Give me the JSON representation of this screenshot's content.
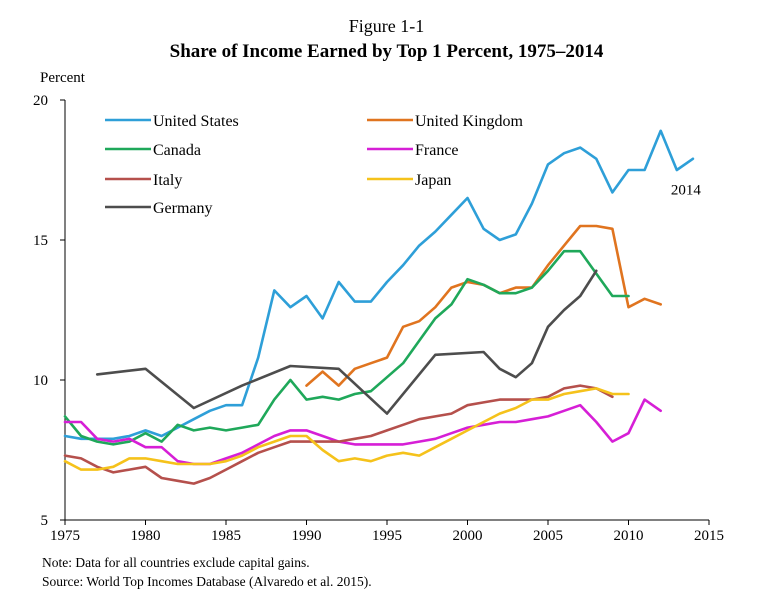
{
  "figure_label": "Figure 1-1",
  "notes": [
    "Note: Data for all countries exclude capital gains.",
    "Source: World Top Incomes Database (Alvaredo et al. 2015)."
  ],
  "chart_data": {
    "type": "line",
    "title": "Share of Income Earned by Top 1 Percent, 1975–2014",
    "ylabel": "Percent",
    "xlabel": "",
    "xlim": [
      1975,
      2015
    ],
    "ylim": [
      5,
      20
    ],
    "x_ticks": [
      1975,
      1980,
      1985,
      1990,
      1995,
      2000,
      2005,
      2010,
      2015
    ],
    "y_ticks": [
      5,
      10,
      15,
      20
    ],
    "grid": false,
    "legend_position": "top-left",
    "annotations": [
      {
        "text": "2014",
        "x": 2014,
        "y": 16.8
      }
    ],
    "series": [
      {
        "name": "United States",
        "color": "#2E9FD8",
        "x": [
          1975,
          1976,
          1977,
          1978,
          1979,
          1980,
          1981,
          1982,
          1983,
          1984,
          1985,
          1986,
          1987,
          1988,
          1989,
          1990,
          1991,
          1992,
          1993,
          1994,
          1995,
          1996,
          1997,
          1998,
          1999,
          2000,
          2001,
          2002,
          2003,
          2004,
          2005,
          2006,
          2007,
          2008,
          2009,
          2010,
          2011,
          2012,
          2013,
          2014
        ],
        "y": [
          8.0,
          7.9,
          7.9,
          7.9,
          8.0,
          8.2,
          8.0,
          8.3,
          8.6,
          8.9,
          9.1,
          9.1,
          10.8,
          13.2,
          12.6,
          13.0,
          12.2,
          13.5,
          12.8,
          12.8,
          13.5,
          14.1,
          14.8,
          15.3,
          15.9,
          16.5,
          15.4,
          15.0,
          15.2,
          16.3,
          17.7,
          18.1,
          18.3,
          17.9,
          16.7,
          17.5,
          17.5,
          18.9,
          17.5,
          17.9
        ]
      },
      {
        "name": "United Kingdom",
        "color": "#E0741F",
        "x": [
          1990,
          1991,
          1992,
          1993,
          1994,
          1995,
          1996,
          1997,
          1998,
          1999,
          2000,
          2001,
          2002,
          2003,
          2004,
          2005,
          2006,
          2007,
          2008,
          2009,
          2010,
          2011,
          2012
        ],
        "y": [
          9.8,
          10.3,
          9.8,
          10.4,
          10.6,
          10.8,
          11.9,
          12.1,
          12.6,
          13.3,
          13.5,
          13.4,
          13.1,
          13.3,
          13.3,
          14.1,
          14.8,
          15.5,
          15.5,
          15.4,
          12.6,
          12.9,
          12.7
        ]
      },
      {
        "name": "Canada",
        "color": "#1FA85A",
        "x": [
          1975,
          1976,
          1977,
          1978,
          1979,
          1980,
          1981,
          1982,
          1983,
          1984,
          1985,
          1986,
          1987,
          1988,
          1989,
          1990,
          1991,
          1992,
          1993,
          1994,
          1995,
          1996,
          1997,
          1998,
          1999,
          2000,
          2001,
          2002,
          2003,
          2004,
          2005,
          2006,
          2007,
          2008,
          2009,
          2010
        ],
        "y": [
          8.7,
          8.0,
          7.8,
          7.7,
          7.8,
          8.1,
          7.8,
          8.4,
          8.2,
          8.3,
          8.2,
          8.3,
          8.4,
          9.3,
          10.0,
          9.3,
          9.4,
          9.3,
          9.5,
          9.6,
          10.1,
          10.6,
          11.4,
          12.2,
          12.7,
          13.6,
          13.4,
          13.1,
          13.1,
          13.3,
          13.9,
          14.6,
          14.6,
          13.8,
          13.0,
          13.0
        ]
      },
      {
        "name": "France",
        "color": "#D61FD6",
        "x": [
          1975,
          1976,
          1977,
          1978,
          1979,
          1980,
          1981,
          1982,
          1983,
          1984,
          1985,
          1986,
          1987,
          1988,
          1989,
          1990,
          1991,
          1992,
          1993,
          1994,
          1995,
          1996,
          1997,
          1998,
          1999,
          2000,
          2001,
          2002,
          2003,
          2004,
          2005,
          2006,
          2007,
          2008,
          2009,
          2010,
          2011,
          2012
        ],
        "y": [
          8.5,
          8.5,
          7.9,
          7.8,
          7.9,
          7.6,
          7.6,
          7.1,
          7.0,
          7.0,
          7.2,
          7.4,
          7.7,
          8.0,
          8.2,
          8.2,
          8.0,
          7.8,
          7.7,
          7.7,
          7.7,
          7.7,
          7.8,
          7.9,
          8.1,
          8.3,
          8.4,
          8.5,
          8.5,
          8.6,
          8.7,
          8.9,
          9.1,
          8.5,
          7.8,
          8.1,
          9.3,
          8.9
        ]
      },
      {
        "name": "Italy",
        "color": "#B5504C",
        "x": [
          1975,
          1976,
          1977,
          1978,
          1979,
          1980,
          1981,
          1982,
          1983,
          1984,
          1985,
          1986,
          1987,
          1988,
          1989,
          1990,
          1991,
          1992,
          1993,
          1994,
          1995,
          1996,
          1997,
          1998,
          1999,
          2000,
          2001,
          2002,
          2003,
          2004,
          2005,
          2006,
          2007,
          2008,
          2009
        ],
        "y": [
          7.3,
          7.2,
          6.9,
          6.7,
          6.8,
          6.9,
          6.5,
          6.4,
          6.3,
          6.5,
          6.8,
          7.1,
          7.4,
          7.6,
          7.8,
          7.8,
          7.8,
          7.8,
          7.9,
          8.0,
          8.2,
          8.4,
          8.6,
          8.7,
          8.8,
          9.1,
          9.2,
          9.3,
          9.3,
          9.3,
          9.4,
          9.7,
          9.8,
          9.7,
          9.4
        ]
      },
      {
        "name": "Japan",
        "color": "#F5C21B",
        "x": [
          1975,
          1976,
          1977,
          1978,
          1979,
          1980,
          1981,
          1982,
          1983,
          1984,
          1985,
          1986,
          1987,
          1988,
          1989,
          1990,
          1991,
          1992,
          1993,
          1994,
          1995,
          1996,
          1997,
          1998,
          1999,
          2000,
          2001,
          2002,
          2003,
          2004,
          2005,
          2006,
          2007,
          2008,
          2009,
          2010
        ],
        "y": [
          7.1,
          6.8,
          6.8,
          6.9,
          7.2,
          7.2,
          7.1,
          7.0,
          7.0,
          7.0,
          7.1,
          7.3,
          7.6,
          7.8,
          8.0,
          8.0,
          7.5,
          7.1,
          7.2,
          7.1,
          7.3,
          7.4,
          7.3,
          7.6,
          7.9,
          8.2,
          8.5,
          8.8,
          9.0,
          9.3,
          9.3,
          9.5,
          9.6,
          9.7,
          9.5,
          9.5
        ]
      },
      {
        "name": "Germany",
        "color": "#4D4D4D",
        "x": [
          1977,
          1980,
          1983,
          1986,
          1989,
          1992,
          1995,
          1998,
          2001,
          2002,
          2003,
          2004,
          2005,
          2006,
          2007,
          2008
        ],
        "y": [
          10.2,
          10.4,
          9.0,
          9.8,
          10.5,
          10.4,
          8.8,
          10.9,
          11.0,
          10.4,
          10.1,
          10.6,
          11.9,
          12.5,
          13.0,
          13.9
        ]
      }
    ]
  }
}
